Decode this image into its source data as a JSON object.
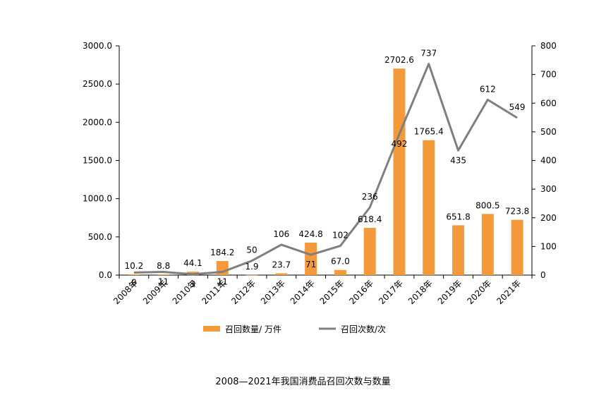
{
  "chart_data": {
    "type": "bar",
    "categories": [
      "2008年",
      "2009年",
      "2010年",
      "2011年",
      "2012年",
      "2013年",
      "2014年",
      "2015年",
      "2016年",
      "2017年",
      "2018年",
      "2019年",
      "2020年",
      "2021年"
    ],
    "series": [
      {
        "name": "召回数量/ 万件",
        "type": "bar",
        "axis": "left",
        "values": [
          10.2,
          8.8,
          44.1,
          184.2,
          1.9,
          23.7,
          424.8,
          67.0,
          618.4,
          2702.6,
          1765.4,
          651.8,
          800.5,
          723.8
        ],
        "labels": [
          "10.2",
          "8.8",
          "44.1",
          "184.2",
          "1.9",
          "23.7",
          "424.8",
          "67.0",
          "618.4",
          "2702.6",
          "1765.4",
          "651.8",
          "800.5",
          "723.8"
        ]
      },
      {
        "name": "召回次数/次",
        "type": "line",
        "axis": "right",
        "values": [
          9,
          11,
          3,
          11,
          50,
          106,
          71,
          102,
          236,
          492,
          737,
          435,
          612,
          549
        ],
        "labels": [
          "9",
          "11",
          "3",
          "11",
          "50",
          "106",
          "71",
          "102",
          "236",
          "492",
          "737",
          "435",
          "612",
          "549"
        ]
      }
    ],
    "y_left": {
      "min": 0,
      "max": 3000,
      "ticks": [
        "0.0",
        "500.0",
        "1000.0",
        "1500.0",
        "2000.0",
        "2500.0",
        "3000.0"
      ]
    },
    "y_right": {
      "min": 0,
      "max": 800,
      "ticks": [
        "0",
        "100",
        "200",
        "300",
        "400",
        "500",
        "600",
        "700",
        "800"
      ]
    },
    "grid": false,
    "legend_position": "bottom",
    "caption": "2008—2021年我国消费品召回次数与数量",
    "colors": {
      "bar": "#F59A3B",
      "line": "#7F7F7F",
      "axis": "#000000"
    }
  }
}
